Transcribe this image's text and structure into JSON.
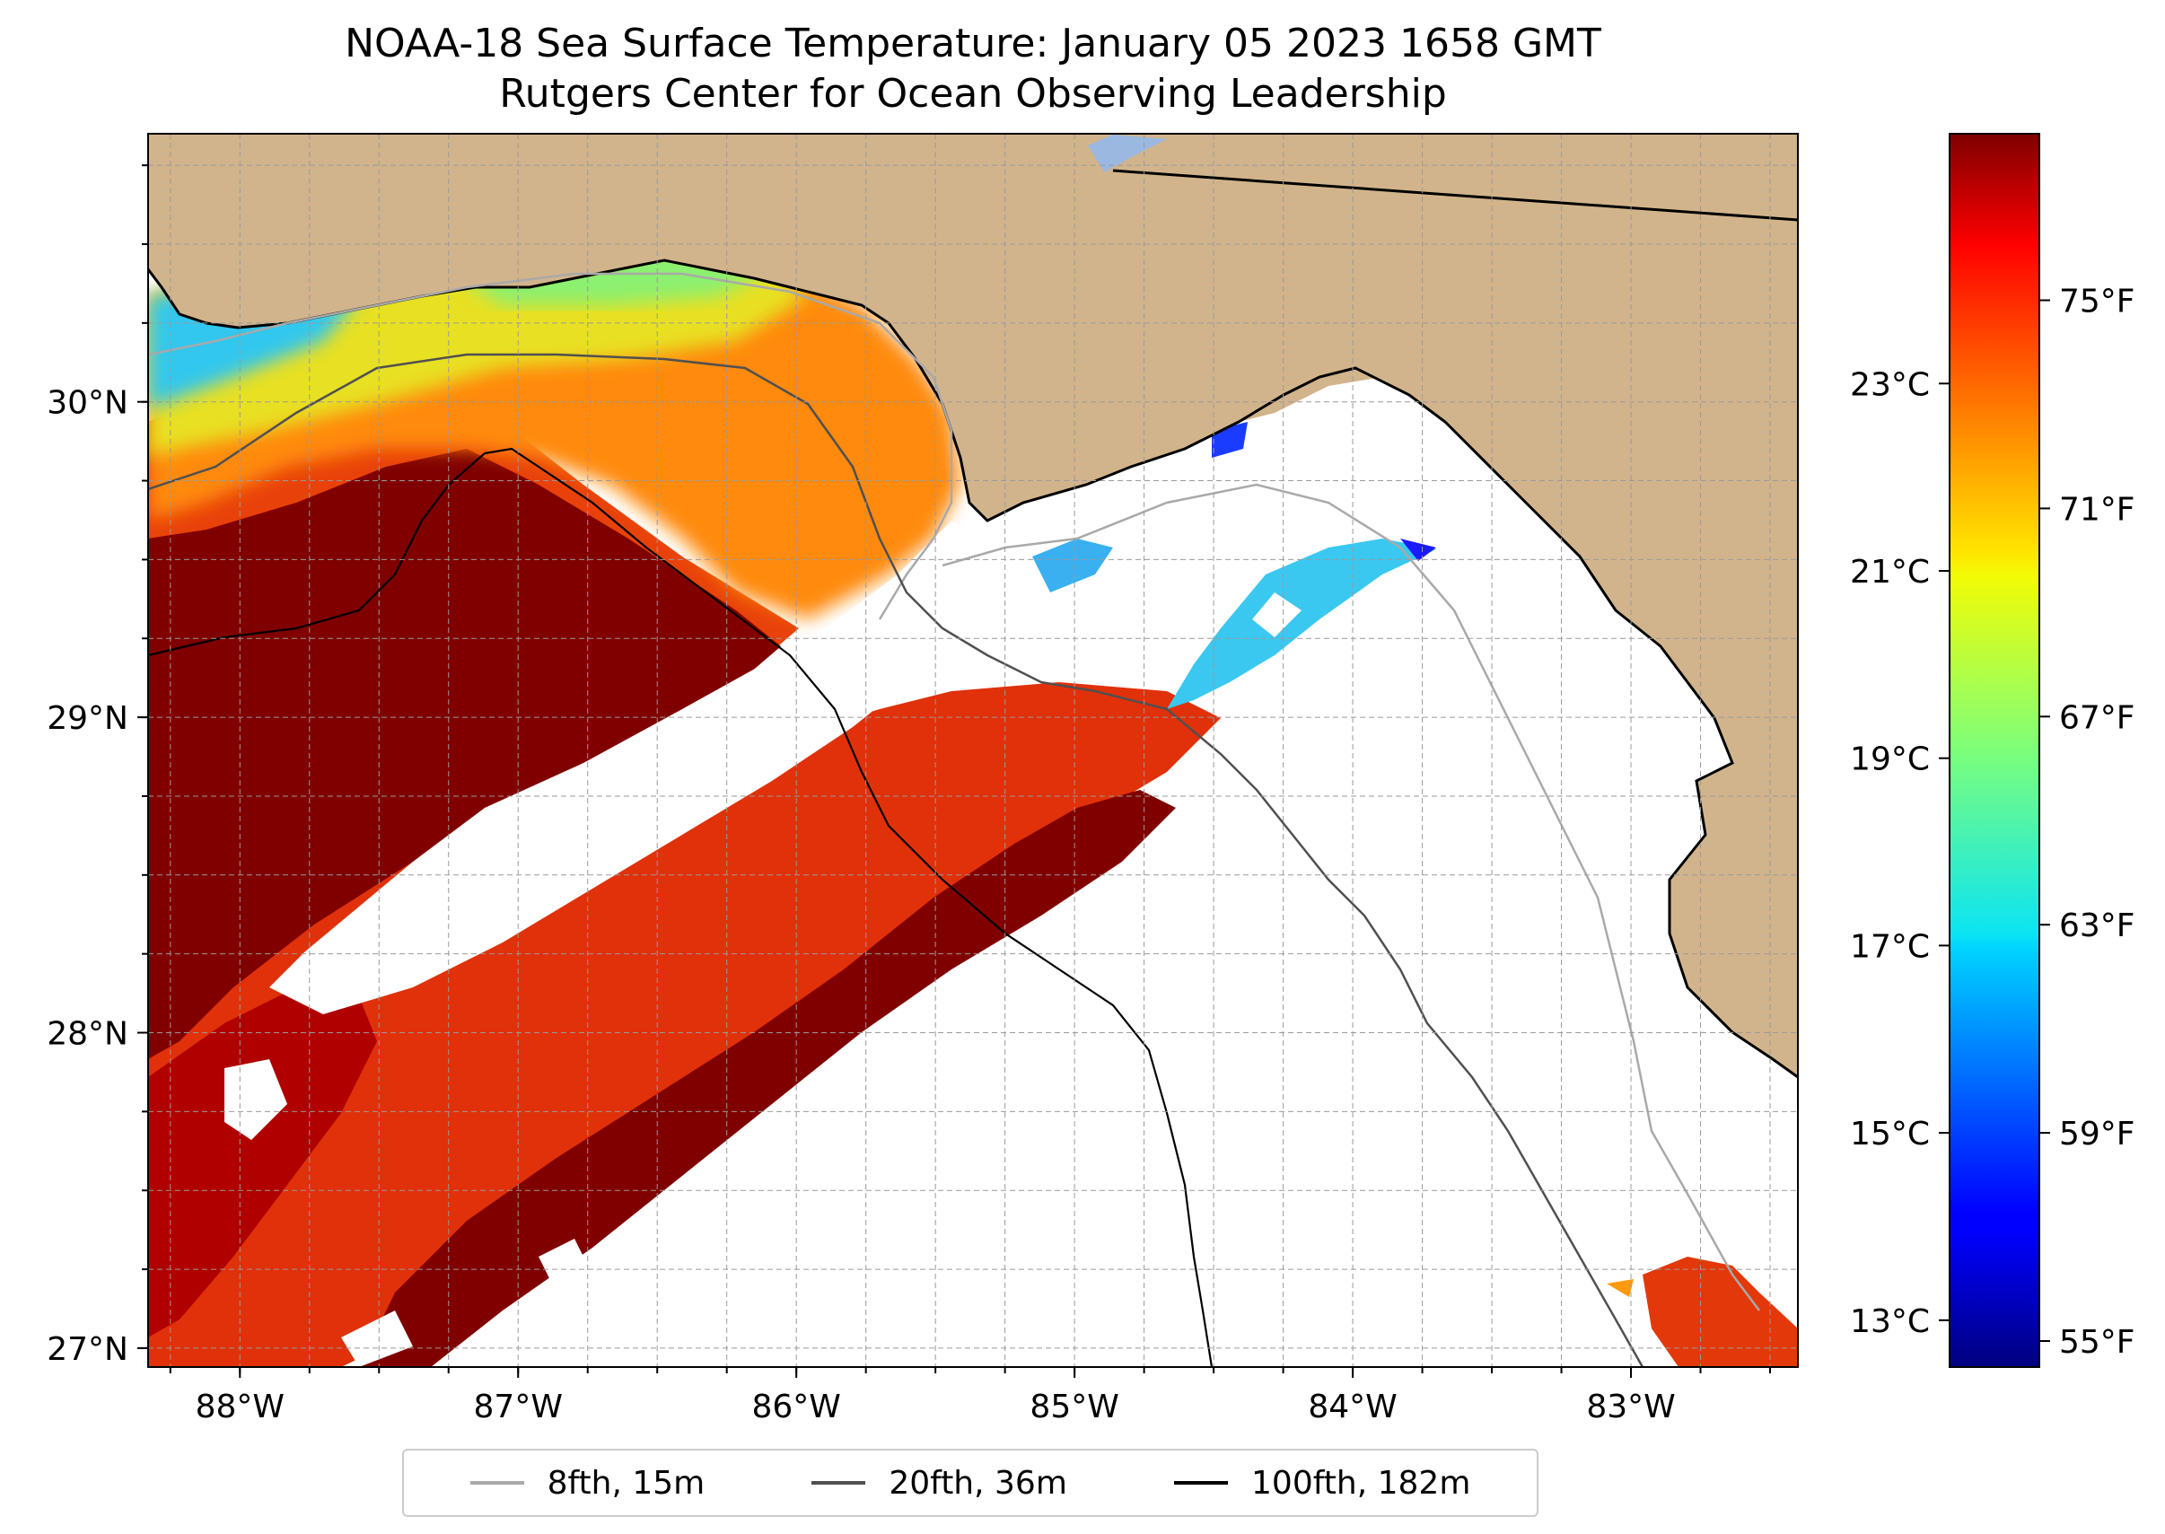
{
  "title": {
    "line1": "NOAA-18 Sea Surface Temperature: January 05 2023 1658 GMT",
    "line2": "Rutgers Center for Ocean Observing Leadership"
  },
  "map": {
    "lon_range": [
      -88.33,
      -82.4
    ],
    "lat_range": [
      26.94,
      30.85
    ],
    "land_color": "#d2b48c",
    "no_data_color": "#ffffff",
    "gridlines": "dashed, 0.25 degree",
    "lat_ticks": [
      {
        "value": 30,
        "label": "30°N"
      },
      {
        "value": 29,
        "label": "29°N"
      },
      {
        "value": 28,
        "label": "28°N"
      },
      {
        "value": 27,
        "label": "27°N"
      }
    ],
    "lon_ticks": [
      {
        "value": -88,
        "label": "88°W"
      },
      {
        "value": -87,
        "label": "87°W"
      },
      {
        "value": -86,
        "label": "86°W"
      },
      {
        "value": -85,
        "label": "85°W"
      },
      {
        "value": -84,
        "label": "84°W"
      },
      {
        "value": -83,
        "label": "83°W"
      }
    ]
  },
  "colorbar": {
    "colormap": "jet",
    "range_f": [
      54.5,
      78.2
    ],
    "f_ticks": [
      {
        "value": 75,
        "label": "75°F"
      },
      {
        "value": 71,
        "label": "71°F"
      },
      {
        "value": 67,
        "label": "67°F"
      },
      {
        "value": 63,
        "label": "63°F"
      },
      {
        "value": 59,
        "label": "59°F"
      },
      {
        "value": 55,
        "label": "55°F"
      }
    ],
    "c_ticks": [
      {
        "value": 23,
        "label": "23°C"
      },
      {
        "value": 21,
        "label": "21°C"
      },
      {
        "value": 19,
        "label": "19°C"
      },
      {
        "value": 17,
        "label": "17°C"
      },
      {
        "value": 15,
        "label": "15°C"
      },
      {
        "value": 13,
        "label": "13°C"
      }
    ]
  },
  "legend": {
    "items": [
      {
        "label": "8fth, 15m",
        "color": "#a9a9a9"
      },
      {
        "label": "20fth, 36m",
        "color": "#505050"
      },
      {
        "label": "100fth, 182m",
        "color": "#000000"
      }
    ]
  }
}
